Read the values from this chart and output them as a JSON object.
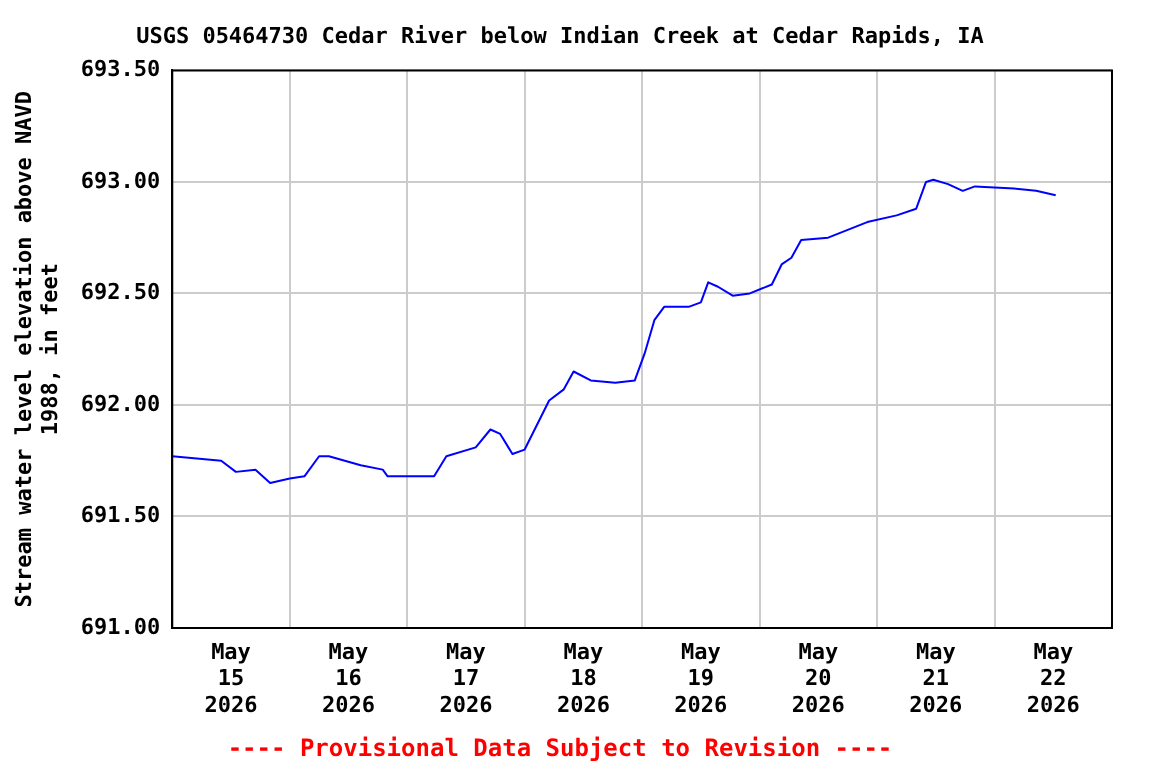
{
  "chart_data": {
    "type": "line",
    "title": "USGS 05464730 Cedar River below Indian Creek at Cedar Rapids, IA",
    "ylabel": "Stream water level elevation above NAVD 1988, in feet",
    "annotations": [
      "---- Provisional Data Subject to Revision ----"
    ],
    "x": [
      "2026-05-15T00:00",
      "2026-05-15T10:00",
      "2026-05-15T13:00",
      "2026-05-15T17:00",
      "2026-05-15T20:00",
      "2026-05-16T00:00",
      "2026-05-16T03:00",
      "2026-05-16T06:00",
      "2026-05-16T08:00",
      "2026-05-16T14:30",
      "2026-05-16T19:00",
      "2026-05-16T20:00",
      "2026-05-17T05:30",
      "2026-05-17T08:00",
      "2026-05-17T14:00",
      "2026-05-17T17:00",
      "2026-05-17T19:00",
      "2026-05-17T21:30",
      "2026-05-18T00:00",
      "2026-05-18T05:00",
      "2026-05-18T08:00",
      "2026-05-18T10:00",
      "2026-05-18T13:30",
      "2026-05-18T18:30",
      "2026-05-18T22:30",
      "2026-05-19T00:30",
      "2026-05-19T02:30",
      "2026-05-19T04:30",
      "2026-05-19T09:30",
      "2026-05-19T12:00",
      "2026-05-19T13:30",
      "2026-05-19T15:30",
      "2026-05-19T18:30",
      "2026-05-19T22:00",
      "2026-05-20T02:30",
      "2026-05-20T04:30",
      "2026-05-20T06:30",
      "2026-05-20T08:30",
      "2026-05-20T14:00",
      "2026-05-20T22:00",
      "2026-05-21T04:00",
      "2026-05-21T08:00",
      "2026-05-21T10:00",
      "2026-05-21T11:30",
      "2026-05-21T14:30",
      "2026-05-21T17:30",
      "2026-05-21T20:00",
      "2026-05-22T04:00",
      "2026-05-22T08:30",
      "2026-05-22T12:30"
    ],
    "series": [
      {
        "color": "#0000ff",
        "values": [
          691.77,
          691.75,
          691.7,
          691.71,
          691.65,
          691.67,
          691.68,
          691.77,
          691.77,
          691.73,
          691.71,
          691.68,
          691.68,
          691.77,
          691.81,
          691.89,
          691.87,
          691.78,
          691.8,
          692.02,
          692.07,
          692.15,
          692.11,
          692.1,
          692.11,
          692.23,
          692.38,
          692.44,
          692.44,
          692.46,
          692.55,
          692.53,
          692.49,
          692.5,
          692.54,
          692.63,
          692.66,
          692.74,
          692.75,
          692.82,
          692.85,
          692.88,
          693.0,
          693.01,
          692.99,
          692.96,
          692.98,
          692.97,
          692.96,
          692.94
        ]
      }
    ],
    "xlim": [
      "2026-05-15T00:00",
      "2026-05-23T00:00"
    ],
    "xticks": [
      {
        "value": "2026-05-15T12:00",
        "label": "May\n15\n2026"
      },
      {
        "value": "2026-05-16T00:00",
        "label": null
      },
      {
        "value": "2026-05-16T12:00",
        "label": "May\n16\n2026"
      },
      {
        "value": "2026-05-17T00:00",
        "label": null
      },
      {
        "value": "2026-05-17T12:00",
        "label": "May\n17\n2026"
      },
      {
        "value": "2026-05-18T00:00",
        "label": null
      },
      {
        "value": "2026-05-18T12:00",
        "label": "May\n18\n2026"
      },
      {
        "value": "2026-05-19T00:00",
        "label": null
      },
      {
        "value": "2026-05-19T12:00",
        "label": "May\n19\n2026"
      },
      {
        "value": "2026-05-20T00:00",
        "label": null
      },
      {
        "value": "2026-05-20T12:00",
        "label": "May\n20\n2026"
      },
      {
        "value": "2026-05-21T00:00",
        "label": null
      },
      {
        "value": "2026-05-21T12:00",
        "label": "May\n21\n2026"
      },
      {
        "value": "2026-05-22T00:00",
        "label": null
      },
      {
        "value": "2026-05-22T12:00",
        "label": "May\n22\n2026"
      }
    ],
    "ylim": [
      691.0,
      693.5
    ],
    "yticks": [
      {
        "value": 691.0,
        "label": "691.00"
      },
      {
        "value": 691.5,
        "label": "691.50"
      },
      {
        "value": 692.0,
        "label": "692.00"
      },
      {
        "value": 692.5,
        "label": "692.50"
      },
      {
        "value": 693.0,
        "label": "693.00"
      },
      {
        "value": 693.5,
        "label": "693.50"
      }
    ],
    "grid": true,
    "marker": "none",
    "line_style": "solid",
    "legend": false
  }
}
